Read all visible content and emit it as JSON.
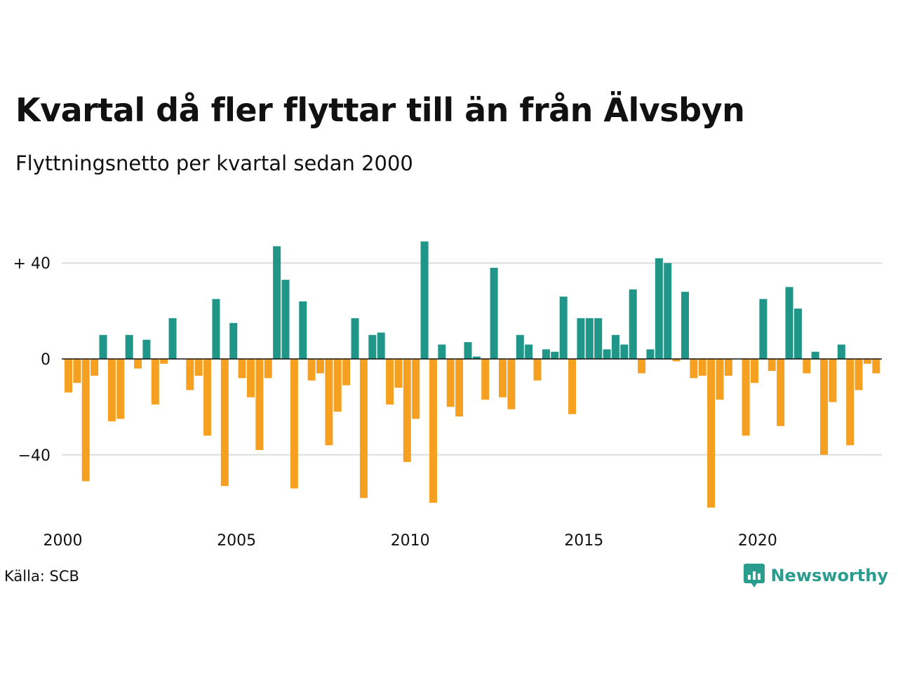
{
  "title": "Kvartal då fler flyttar till än från Älvsbyn",
  "subtitle": "Flyttningsnetto per kvartal sedan 2000",
  "source": "Källa: SCB",
  "brand": {
    "name": "Newsworthy",
    "icon": "newsworthy-logo-icon"
  },
  "colors": {
    "positive": "#1f9688",
    "negative": "#f5a020",
    "grid": "#dddddd",
    "axis": "#111111"
  },
  "chart_data": {
    "type": "bar",
    "title": "Kvartal då fler flyttar till än från Älvsbyn",
    "subtitle": "Flyttningsnetto per kvartal sedan 2000",
    "ylim": [
      -62,
      49
    ],
    "yticks": [
      40,
      0,
      -40
    ],
    "ytick_labels": [
      "+ 40",
      "0",
      "−40"
    ],
    "xticks": [
      2000,
      2005,
      2010,
      2015,
      2020
    ],
    "xtick_labels": [
      "2000",
      "2005",
      "2010",
      "2015",
      "2020"
    ],
    "x_start": "2000 Q1",
    "grid": true,
    "legend": "none",
    "values": [
      -14,
      -10,
      -51,
      -7,
      10,
      -26,
      -25,
      10,
      -4,
      8,
      -19,
      -2,
      17,
      0,
      -13,
      -7,
      -32,
      25,
      -53,
      15,
      -8,
      -16,
      -38,
      -8,
      47,
      33,
      -54,
      24,
      -9,
      -6,
      -36,
      -22,
      -11,
      17,
      -58,
      10,
      11,
      -19,
      -12,
      -43,
      -25,
      49,
      -60,
      6,
      -20,
      -24,
      7,
      1,
      -17,
      38,
      -16,
      -21,
      10,
      6,
      -9,
      4,
      3,
      26,
      -23,
      17,
      17,
      17,
      4,
      10,
      6,
      29,
      -6,
      4,
      42,
      40,
      -1,
      28,
      -8,
      -7,
      -62,
      -17,
      -7,
      0,
      -32,
      -10,
      25,
      -5,
      -28,
      30,
      21,
      -6,
      3,
      -40,
      -18,
      6,
      -36,
      -13,
      -2,
      -6
    ]
  }
}
